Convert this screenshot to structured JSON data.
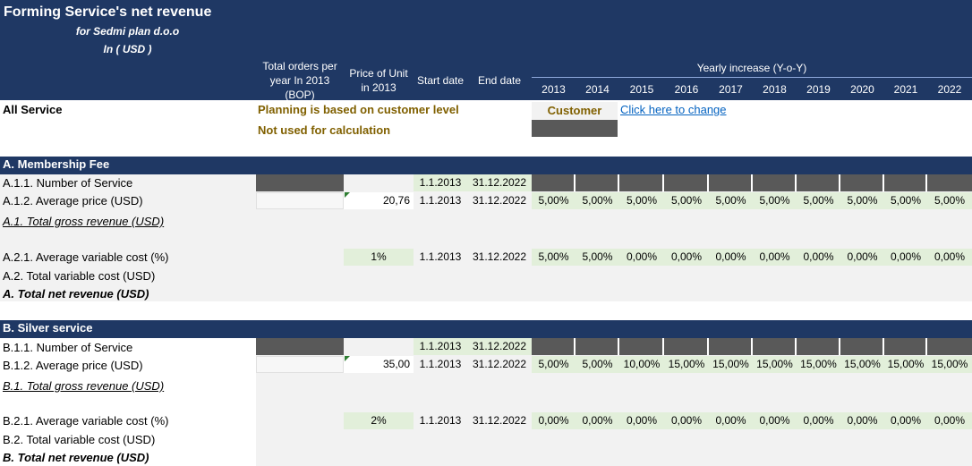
{
  "header": {
    "title": "Forming Service's net revenue",
    "subtitle": "for Sedmi plan d.o.o",
    "currency": "In ( USD )",
    "col_orders": [
      "Total orders per",
      "year In  2013",
      "(BOP)"
    ],
    "col_price": [
      "Price of Unit",
      "in 2013"
    ],
    "col_start": "Start date",
    "col_end": "End date",
    "yearly_increase": "Yearly increase (Y-o-Y)",
    "years": [
      "2013",
      "2014",
      "2015",
      "2016",
      "2017",
      "2018",
      "2019",
      "2020",
      "2021",
      "2022"
    ]
  },
  "all_service": {
    "label": "All Service",
    "planning_note": "Planning is based on customer level",
    "not_used_note": "Not used for calculation",
    "selector_value": "Customer",
    "change_link": "Click here to change"
  },
  "section_a": {
    "title": "A. Membership Fee",
    "row1_label": "A.1.1. Number of Service",
    "row1_start": "1.1.2013",
    "row1_end": "31.12.2022",
    "row2_label": "A.1.2. Average price (USD)",
    "row2_price": "20,76",
    "row2_start": "1.1.2013",
    "row2_end": "31.12.2022",
    "row2_rates": [
      "5,00%",
      "5,00%",
      "5,00%",
      "5,00%",
      "5,00%",
      "5,00%",
      "5,00%",
      "5,00%",
      "5,00%",
      "5,00%"
    ],
    "gross_label": "A.1. Total gross revenue (USD)",
    "var_label": "A.2.1. Average variable cost (%)",
    "var_value": "1%",
    "var_start": "1.1.2013",
    "var_end": "31.12.2022",
    "var_rates": [
      "5,00%",
      "5,00%",
      "0,00%",
      "0,00%",
      "0,00%",
      "0,00%",
      "0,00%",
      "0,00%",
      "0,00%",
      "0,00%"
    ],
    "total_var_label": "A.2. Total variable cost (USD)",
    "net_label": "A. Total net revenue  (USD)"
  },
  "section_b": {
    "title": "B. Silver service",
    "row1_label": "B.1.1. Number of Service",
    "row1_start": "1.1.2013",
    "row1_end": "31.12.2022",
    "row2_label": "B.1.2. Average price (USD)",
    "row2_price": "35,00",
    "row2_start": "1.1.2013",
    "row2_end": "31.12.2022",
    "row2_rates": [
      "5,00%",
      "5,00%",
      "10,00%",
      "15,00%",
      "15,00%",
      "15,00%",
      "15,00%",
      "15,00%",
      "15,00%",
      "15,00%"
    ],
    "gross_label": "B.1. Total gross revenue (USD)",
    "var_label": "B.2.1. Average variable cost (%)",
    "var_value": "2%",
    "var_start": "1.1.2013",
    "var_end": "31.12.2022",
    "var_rates": [
      "0,00%",
      "0,00%",
      "0,00%",
      "0,00%",
      "0,00%",
      "0,00%",
      "0,00%",
      "0,00%",
      "0,00%",
      "0,00%"
    ],
    "total_var_label": "B.2. Total variable cost (USD)",
    "net_label": "B. Total net revenue  (USD)"
  },
  "colors": {
    "header_navy": "#1f3864",
    "input_green": "#e2efda",
    "locked_dark": "#595959",
    "note_gold": "#806000",
    "link_blue": "#0563c1"
  }
}
